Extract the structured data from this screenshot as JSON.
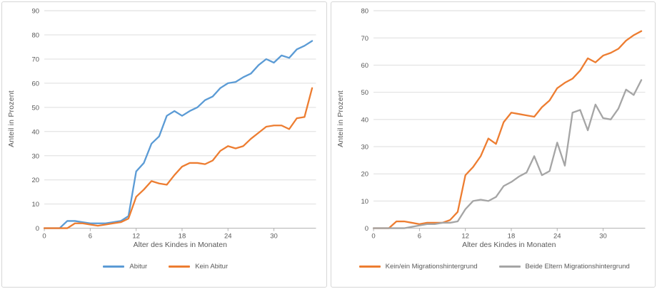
{
  "figure": {
    "background": "#ffffff",
    "panel_border_color": "#d6d6d6"
  },
  "chart_data": [
    {
      "type": "line",
      "title": "",
      "xlabel": "Alter des Kindes in Monaten",
      "ylabel": "Anteil in Prozent",
      "x_unit": "Monate (Index = Monat)",
      "x_range": [
        0,
        35
      ],
      "x_ticks": [
        0,
        6,
        12,
        18,
        24,
        30
      ],
      "ylim": [
        0,
        90
      ],
      "y_ticks": [
        0,
        10,
        20,
        30,
        40,
        50,
        60,
        70,
        80,
        90
      ],
      "grid": "horizontal",
      "legend_position": "bottom",
      "series": [
        {
          "name": "Abitur",
          "color": "#5B9BD5",
          "values": [
            0,
            0,
            0,
            3,
            3,
            2.5,
            2,
            2,
            2,
            2.5,
            3,
            5,
            23.5,
            27,
            35,
            38,
            46.5,
            48.5,
            46.5,
            48.5,
            50,
            53,
            54.5,
            58,
            60,
            60.5,
            62.5,
            64,
            67.5,
            70,
            68.5,
            71.5,
            70.5,
            74,
            75.5,
            77.5
          ]
        },
        {
          "name": "Kein Abitur",
          "color": "#ED7D31",
          "values": [
            0,
            0,
            0,
            0,
            2,
            2,
            1.5,
            1,
            1.5,
            2,
            2.5,
            4,
            13,
            16,
            19.5,
            18.5,
            18,
            22,
            25.5,
            27,
            27,
            26.5,
            28,
            32,
            34,
            33,
            34,
            37,
            39.5,
            42,
            42.5,
            42.5,
            41,
            45.5,
            46,
            58
          ]
        }
      ]
    },
    {
      "type": "line",
      "title": "",
      "xlabel": "Alter des Kindes in Monaten",
      "ylabel": "Anteil in Prozent",
      "x_unit": "Monate (Index = Monat)",
      "x_range": [
        0,
        35
      ],
      "x_ticks": [
        0,
        6,
        12,
        18,
        24,
        30
      ],
      "ylim": [
        0,
        80
      ],
      "y_ticks": [
        0,
        10,
        20,
        30,
        40,
        50,
        60,
        70,
        80
      ],
      "grid": "horizontal",
      "legend_position": "bottom",
      "series": [
        {
          "name": "Kein/ein Migrationshintergrund",
          "color": "#ED7D31",
          "values": [
            0,
            0,
            0,
            2.5,
            2.5,
            2,
            1.5,
            2,
            2,
            2,
            3,
            6,
            19.5,
            22.5,
            26.5,
            33,
            31,
            39,
            42.5,
            42,
            41.5,
            41,
            44.5,
            47,
            51.5,
            53.5,
            55,
            58,
            62.5,
            61,
            63.5,
            64.5,
            66,
            69,
            71,
            72.5
          ]
        },
        {
          "name": "Beide Eltern Migrationshintergrund",
          "color": "#A5A5A5",
          "values": [
            0,
            0,
            0,
            0,
            0,
            0.5,
            1,
            1.5,
            1.5,
            2,
            2,
            2.5,
            7,
            10,
            10.5,
            10,
            11.5,
            15.5,
            17,
            19,
            20.5,
            26.5,
            19.5,
            21,
            31.5,
            23,
            42.5,
            43.5,
            36,
            45.5,
            40.5,
            40,
            44,
            51,
            49,
            54.5
          ]
        }
      ]
    }
  ],
  "style": {
    "gridline_color": "#dedede",
    "axis_line_color": "#afafaf",
    "tick_label_color": "#595959",
    "line_width": 2.3
  }
}
